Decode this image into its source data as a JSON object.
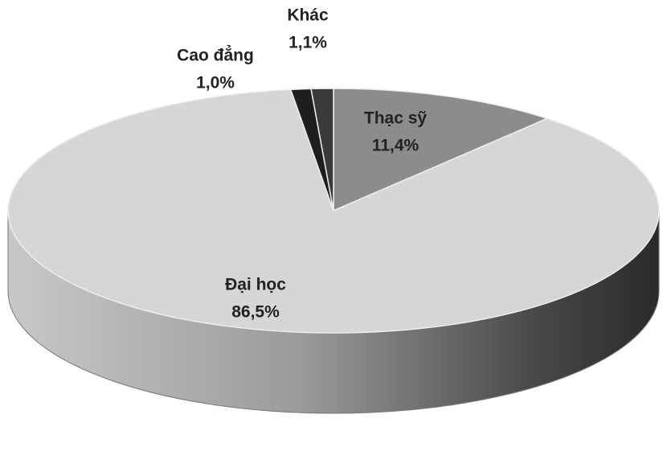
{
  "chart_data": {
    "type": "pie",
    "categories": [
      "Thạc sỹ",
      "Đại học",
      "Cao đẳng",
      "Khác"
    ],
    "values": [
      11.4,
      86.5,
      1.0,
      1.1
    ],
    "value_labels": [
      "11,4%",
      "86,5%",
      "1,0%",
      "1,1%"
    ],
    "colors": [
      "#8c8c8c",
      "#d6d6d6",
      "#1e1e1e",
      "#3a3a3a"
    ]
  }
}
